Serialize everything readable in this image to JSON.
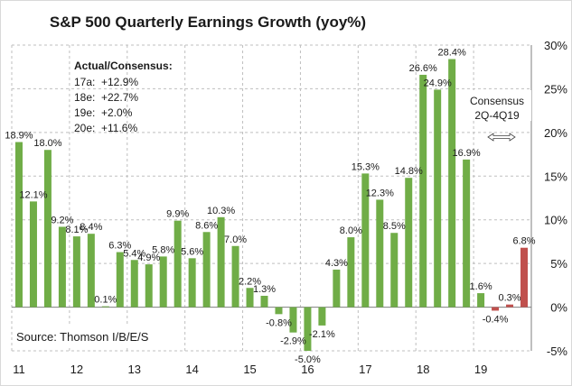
{
  "chart_data": {
    "type": "bar",
    "title": "S&P 500 Quarterly Earnings Growth (yoy%)",
    "ylim": [
      -5,
      30
    ],
    "y_ticks": [
      "-5%",
      "0%",
      "5%",
      "10%",
      "15%",
      "20%",
      "25%",
      "30%"
    ],
    "y_axis_position": "right",
    "grid": "dashed-vertical-and-horizontal",
    "x_groups": [
      "11",
      "12",
      "13",
      "14",
      "15",
      "16",
      "17",
      "18",
      "19"
    ],
    "values": [
      18.9,
      12.1,
      18.0,
      9.2,
      8.1,
      8.4,
      0.1,
      6.3,
      5.4,
      4.9,
      5.8,
      9.9,
      5.6,
      8.6,
      10.3,
      7.0,
      2.2,
      1.3,
      -0.8,
      -2.9,
      -5.0,
      -2.1,
      4.3,
      8.0,
      15.3,
      12.3,
      8.5,
      14.8,
      26.6,
      24.9,
      28.4,
      16.9,
      1.6,
      -0.4,
      0.3,
      6.8
    ],
    "labels": [
      "18.9%",
      "12.1%",
      "18.0%",
      "9.2%",
      "8.1%",
      "8.4%",
      "0.1%",
      "6.3%",
      "5.4%",
      "4.9%",
      "5.8%",
      "9.9%",
      "5.6%",
      "8.6%",
      "10.3%",
      "7.0%",
      "2.2%",
      "1.3%",
      "-0.8%",
      "-2.9%",
      "-5.0%",
      "-2.1%",
      "4.3%",
      "8.0%",
      "15.3%",
      "12.3%",
      "8.5%",
      "14.8%",
      "26.6%",
      "24.9%",
      "28.4%",
      "16.9%",
      "1.6%",
      "-0.4%",
      "0.3%",
      "6.8%"
    ],
    "colors": {
      "actual": "#70ad47",
      "consensus": "#c0504d",
      "grid": "#bfbfbf",
      "axis": "#7f7f7f"
    },
    "consensus_from_index": 33,
    "annotations": {
      "actual_consensus": {
        "heading": "Actual/Consensus:",
        "rows": [
          {
            "label": "17a:",
            "value": "+12.9%"
          },
          {
            "label": "18e:",
            "value": "+22.7%"
          },
          {
            "label": "19e:",
            "value": "+2.0%"
          },
          {
            "label": "20e:",
            "value": "+11.6%"
          }
        ]
      },
      "consensus_note": [
        "Consensus",
        "2Q-4Q19"
      ],
      "source": "Source:  Thomson I/B/E/S"
    }
  }
}
